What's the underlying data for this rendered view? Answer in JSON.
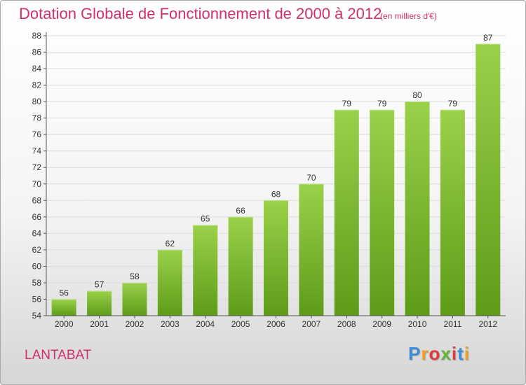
{
  "header": {
    "title": "Dotation Globale de Fonctionnement de 2000 à 2012",
    "subtitle": "(en milliers d'€)"
  },
  "footer": {
    "commune": "LANTABAT",
    "logo_text": "Proxiti",
    "logo_colors": [
      "#3c8fd6",
      "#f0a020",
      "#e03a3a",
      "#63b33c",
      "#e03a3a",
      "#3c8fd6",
      "#f0a020"
    ]
  },
  "chart_data": {
    "type": "bar",
    "title": "Dotation Globale de Fonctionnement de 2000 à 2012",
    "subtitle": "(en milliers d'€)",
    "categories": [
      "2000",
      "2001",
      "2002",
      "2003",
      "2004",
      "2005",
      "2006",
      "2007",
      "2008",
      "2009",
      "2010",
      "2011",
      "2012"
    ],
    "values": [
      56,
      57,
      58,
      62,
      65,
      66,
      68,
      70,
      79,
      79,
      80,
      79,
      87
    ],
    "value_labels": [
      "56",
      "57",
      "58",
      "62",
      "65",
      "66",
      "68",
      "70",
      "79",
      "79",
      "80",
      "79",
      "87"
    ],
    "ylim": [
      54,
      88
    ],
    "yticks": [
      "54",
      "56",
      "58",
      "60",
      "62",
      "64",
      "66",
      "68",
      "70",
      "72",
      "74",
      "76",
      "78",
      "80",
      "82",
      "84",
      "86",
      "88"
    ],
    "grid": "horizontal",
    "bar_color": "#7cbb2f",
    "bar_color_top": "#9ad14a",
    "bar_color_bottom": "#5e9c18"
  }
}
